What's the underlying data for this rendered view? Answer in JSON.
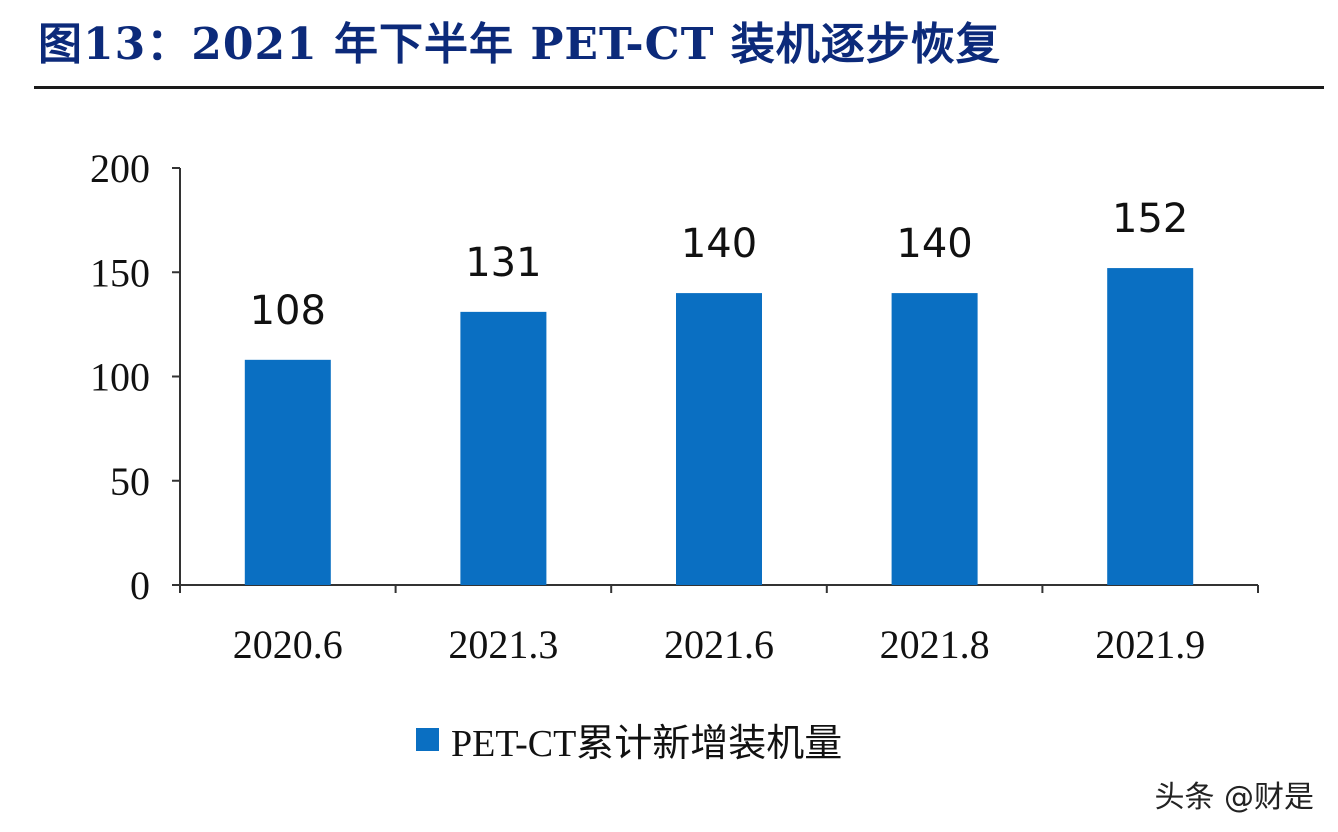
{
  "header": {
    "title": "图13：2021 年下半年 PET-CT 装机逐步恢复"
  },
  "chart_data": {
    "type": "bar",
    "title": "图13：2021 年下半年 PET-CT 装机逐步恢复",
    "categories": [
      "2020.6",
      "2021.3",
      "2021.6",
      "2021.8",
      "2021.9"
    ],
    "series": [
      {
        "name": "PET-CT累计新增装机量",
        "values": [
          108,
          131,
          140,
          140,
          152
        ],
        "color": "#0a6fc2"
      }
    ],
    "data_labels": [
      "108",
      "131",
      "140",
      "140",
      "152"
    ],
    "ylim": [
      0,
      200
    ],
    "yticks": [
      "0",
      "50",
      "100",
      "150",
      "200"
    ],
    "ytick_values": [
      0,
      50,
      100,
      150,
      200
    ],
    "xlabel": "",
    "ylabel": "",
    "grid": false,
    "legend": "bottom-center"
  },
  "legend": {
    "label": "PET-CT累计新增装机量"
  },
  "watermark": {
    "text": "头条 @财是"
  }
}
